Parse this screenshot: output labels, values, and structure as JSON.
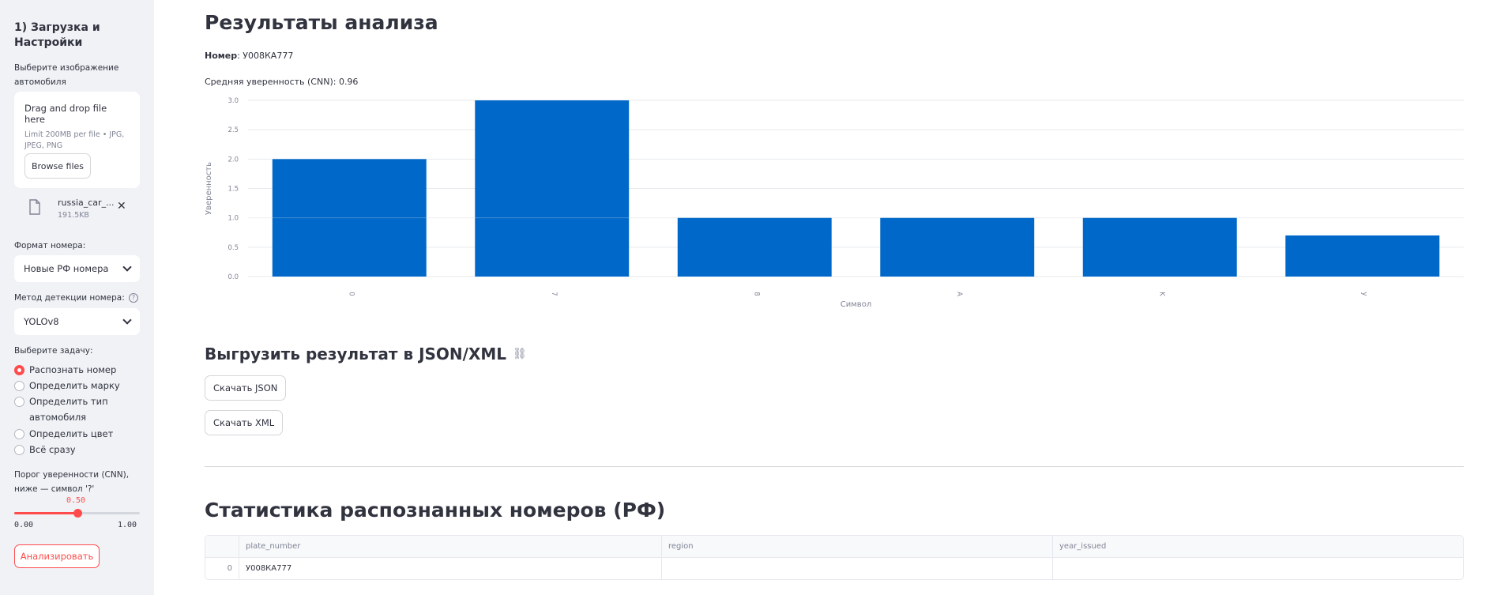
{
  "sidebar": {
    "title": "1) Загрузка и Настройки",
    "upload_label": "Выберите изображение автомобиля",
    "dropzone_text": "Drag and drop file here",
    "dropzone_limit": "Limit 200MB per file • JPG, JPEG, PNG",
    "browse_label": "Browse files",
    "file": {
      "name": "russia_car_...",
      "size": "191.5KB"
    },
    "format_label": "Формат номера:",
    "format_value": "Новые РФ номера",
    "method_label": "Метод детекции номера:",
    "method_value": "YOLOv8",
    "task_label": "Выберите задачу:",
    "tasks": [
      {
        "label": "Распознать номер",
        "checked": true
      },
      {
        "label": "Определить марку",
        "checked": false
      },
      {
        "label": "Определить тип автомобиля",
        "checked": false
      },
      {
        "label": "Определить цвет",
        "checked": false
      },
      {
        "label": "Всё сразу",
        "checked": false
      }
    ],
    "threshold_label": "Порог уверенности (CNN), ниже — символ '?'",
    "threshold": {
      "value": "0.50",
      "min": "0.00",
      "max": "1.00",
      "fraction": 0.5
    },
    "analyze_label": "Анализировать"
  },
  "main": {
    "title": "Результаты анализа",
    "plate_key": "Номер",
    "plate_value": ": У008КА777",
    "confidence_text": "Средняя уверенность (CNN): 0.96",
    "export_title": "Выгрузить результат в JSON/XML",
    "json_button": "Скачать JSON",
    "xml_button": "Скачать XML",
    "stats_title": "Статистика распознанных номеров (РФ)",
    "table": {
      "columns": [
        "",
        "plate_number",
        "region",
        "year_issued"
      ],
      "rows": [
        [
          "0",
          "У008КА777",
          "",
          ""
        ]
      ]
    }
  },
  "chart_data": {
    "type": "bar",
    "categories": [
      "0",
      "7",
      "8",
      "A",
      "K",
      "y"
    ],
    "values": [
      2.0,
      3.0,
      1.0,
      1.0,
      1.0,
      0.7
    ],
    "xlabel": "Символ",
    "ylabel": "Уверенность",
    "ylim": [
      0,
      3.0
    ],
    "yticks": [
      "0.0",
      "0.5",
      "1.0",
      "1.5",
      "2.0",
      "2.5",
      "3.0"
    ],
    "bar_color": "#0068c9",
    "grid": true
  },
  "colors": {
    "accent": "#ff4b4b",
    "sidebar_bg": "#f0f2f6",
    "bar": "#0068c9"
  }
}
